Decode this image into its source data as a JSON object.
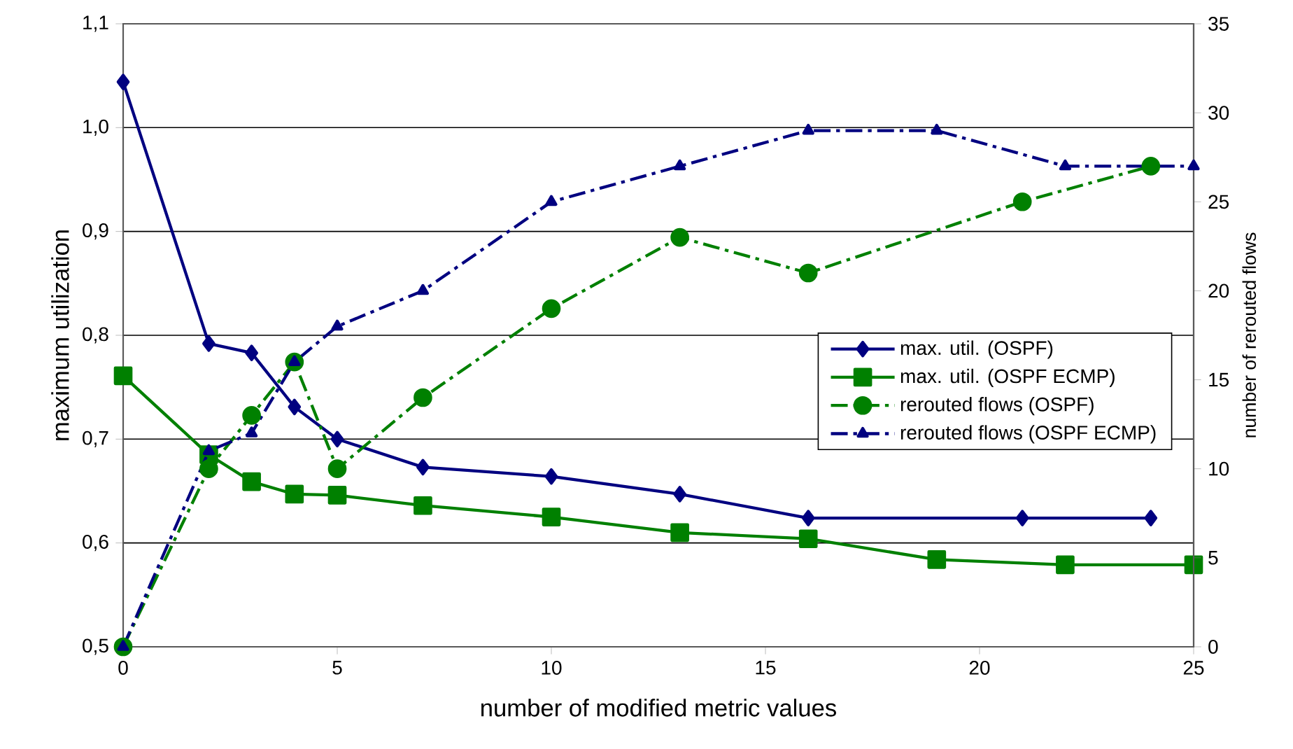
{
  "chart_data": {
    "type": "line",
    "xlabel": "number of modified metric values",
    "ylabel": "maximum utilization",
    "y2label": "number of rerouted flows",
    "xlim": [
      0,
      25
    ],
    "xticks": [
      0,
      5,
      10,
      15,
      20,
      25
    ],
    "ylim": [
      0.5,
      1.1
    ],
    "yticks": [
      {
        "value": 0.5,
        "label": "0,5"
      },
      {
        "value": 0.6,
        "label": "0,6"
      },
      {
        "value": 0.7,
        "label": "0,7"
      },
      {
        "value": 0.8,
        "label": "0,8"
      },
      {
        "value": 0.9,
        "label": "0,9"
      },
      {
        "value": 1.0,
        "label": "1,0"
      },
      {
        "value": 1.1,
        "label": "1,1"
      }
    ],
    "y2lim": [
      0,
      35
    ],
    "y2ticks": [
      0,
      5,
      10,
      15,
      20,
      25,
      30,
      35
    ],
    "grid": "y",
    "legend": "right",
    "series": [
      {
        "name": "max. util. (OSPF)",
        "color": "#000080",
        "marker": "diamond",
        "line_style": "solid",
        "x": [
          0,
          2,
          3,
          4,
          5,
          7,
          10,
          13,
          16,
          21,
          24
        ],
        "values": [
          1.044,
          0.792,
          0.783,
          0.731,
          0.7,
          0.673,
          0.664,
          0.647,
          0.624,
          0.624,
          0.624
        ]
      },
      {
        "name": "max. util. (OSPF ECMP)",
        "color": "#008000",
        "marker": "square",
        "line_style": "solid",
        "x": [
          0,
          2,
          3,
          4,
          5,
          7,
          10,
          13,
          16,
          19,
          22,
          25
        ],
        "values": [
          0.761,
          0.685,
          0.659,
          0.647,
          0.646,
          0.636,
          0.625,
          0.61,
          0.604,
          0.584,
          0.579,
          0.579
        ]
      },
      {
        "name": "rerouted flows (OSPF)",
        "color": "#008000",
        "marker": "circle",
        "line_style": "dashed",
        "axis": "y2",
        "x": [
          0,
          2,
          3,
          4,
          5,
          7,
          10,
          13,
          16,
          21,
          24
        ],
        "values": [
          0,
          10,
          13,
          16,
          10,
          14,
          19,
          23,
          21,
          25,
          27
        ]
      },
      {
        "name": "rerouted flows (OSPF ECMP)",
        "color": "#000080",
        "marker": "triangle",
        "line_style": "dashed",
        "axis": "y2",
        "x": [
          0,
          2,
          3,
          4,
          5,
          7,
          10,
          13,
          16,
          19,
          22,
          25
        ],
        "values": [
          0,
          11,
          12,
          16,
          18,
          20,
          25,
          27,
          29,
          29,
          27,
          27
        ]
      }
    ]
  }
}
